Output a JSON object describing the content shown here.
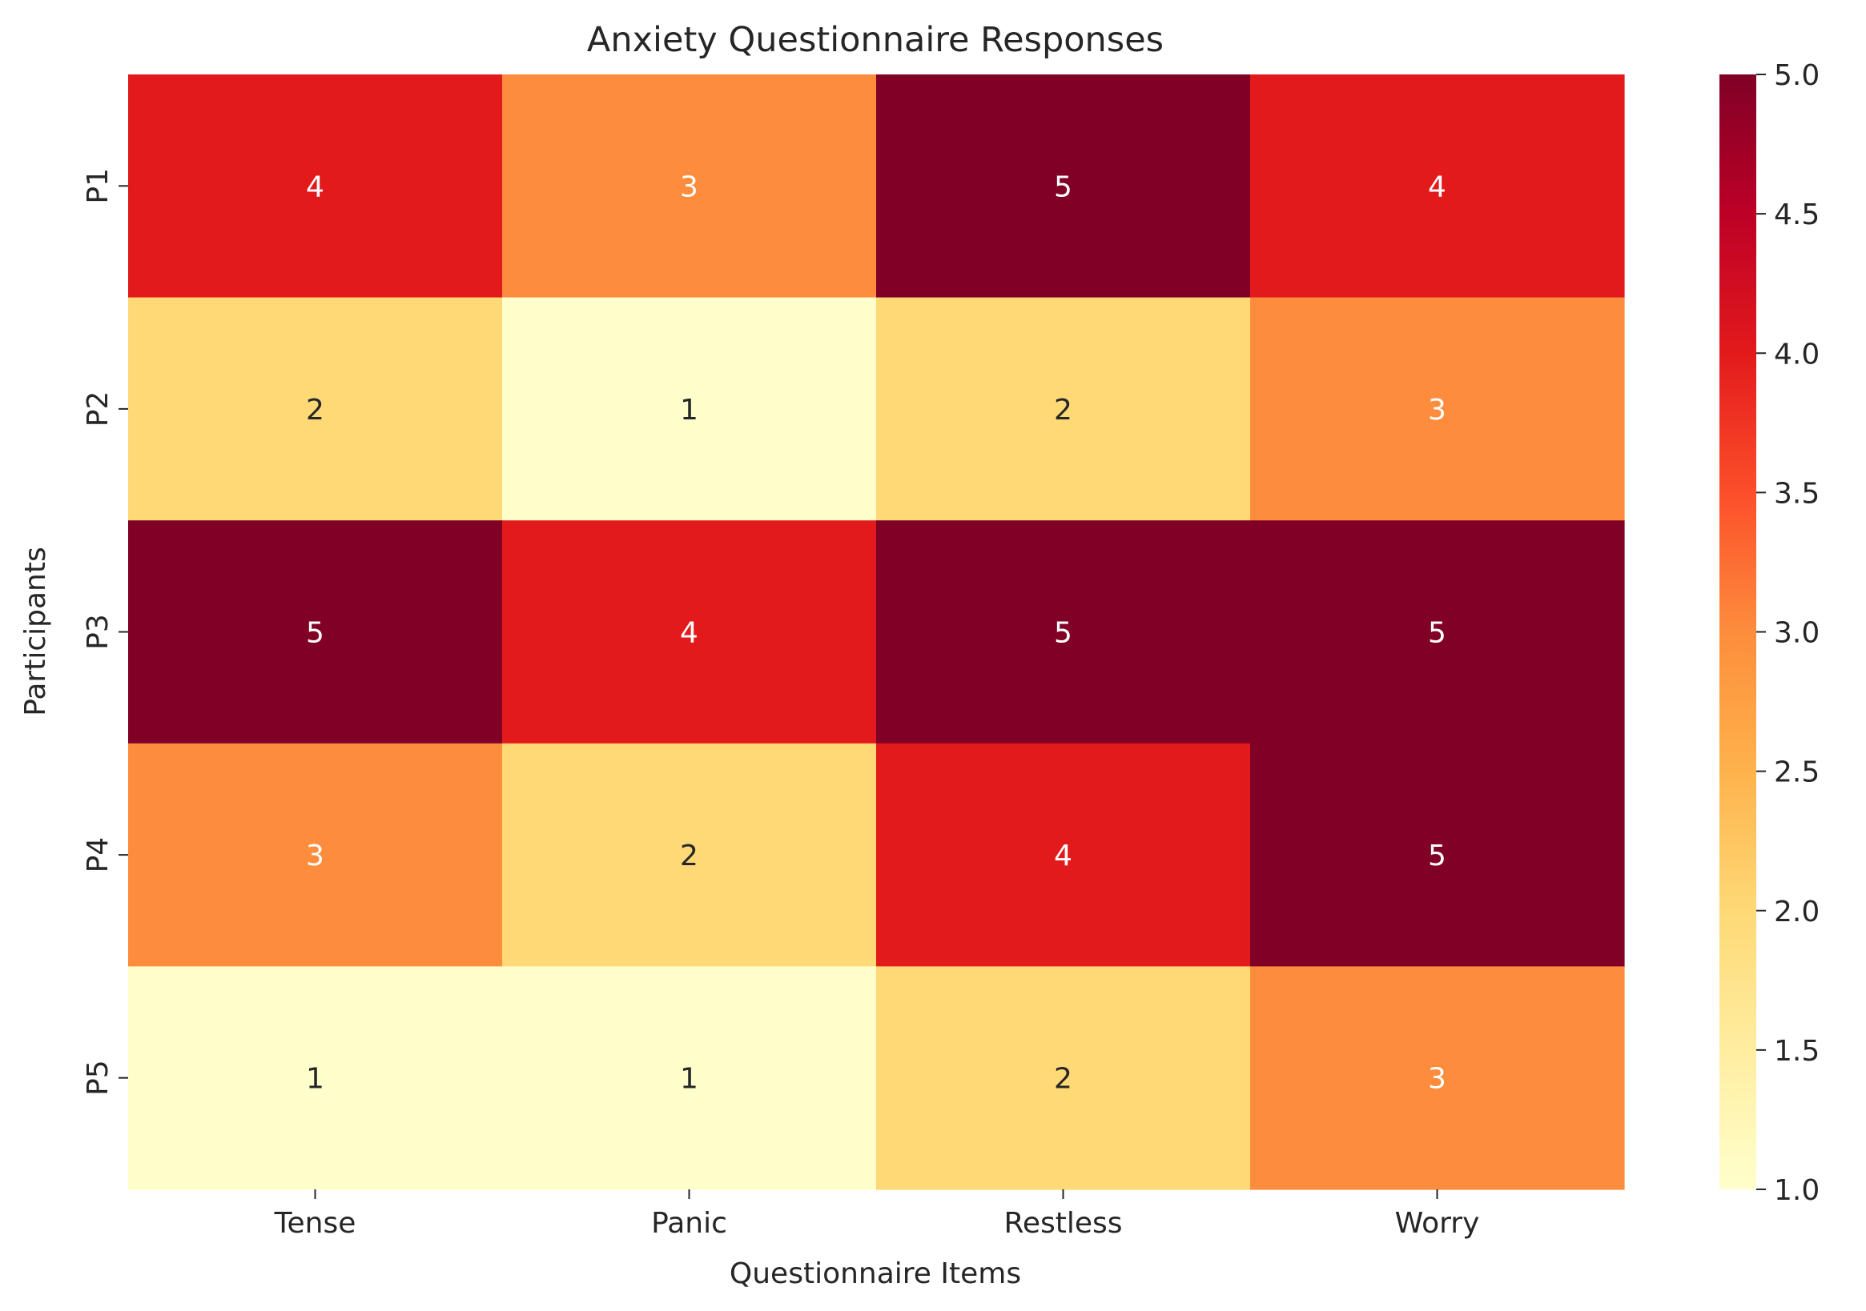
{
  "chart_data": {
    "type": "heatmap",
    "title": "Anxiety Questionnaire Responses",
    "xlabel": "Questionnaire Items",
    "ylabel": "Participants",
    "x_categories": [
      "Tense",
      "Panic",
      "Restless",
      "Worry"
    ],
    "y_categories": [
      "P1",
      "P2",
      "P3",
      "P4",
      "P5"
    ],
    "values": [
      [
        4,
        3,
        5,
        4
      ],
      [
        2,
        1,
        2,
        3
      ],
      [
        5,
        4,
        5,
        5
      ],
      [
        3,
        2,
        4,
        5
      ],
      [
        1,
        1,
        2,
        3
      ]
    ],
    "annotated": true,
    "colormap": "YlOrRd",
    "colorbar": {
      "vmin": 1.0,
      "vmax": 5.0,
      "ticks": [
        "1.0",
        "1.5",
        "2.0",
        "2.5",
        "3.0",
        "3.5",
        "4.0",
        "4.5",
        "5.0"
      ],
      "position": "right"
    },
    "colors": {
      "1": "#ffffcc",
      "2": "#fed976",
      "3": "#fd8d3c",
      "4": "#e31a1c",
      "5": "#800026",
      "text_light": "#ffffff",
      "text_dark": "#262626"
    }
  }
}
